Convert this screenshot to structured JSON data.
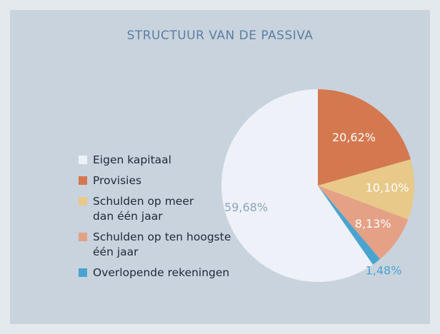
{
  "chart_data": {
    "type": "pie",
    "title": "STRUCTUUR VAN DE PASSIVA",
    "categories": [
      "Eigen kapitaal",
      "Provisies",
      "Schulden op meer\n dan één jaar",
      "Schulden op ten hoogste\néén jaar",
      "Overlopende rekeningen"
    ],
    "values": [
      59.68,
      20.62,
      10.1,
      8.13,
      1.48
    ],
    "value_labels": [
      "59,68%",
      "20,62%",
      "10,10%",
      "8,13%",
      "1,48%"
    ],
    "colors": [
      "#eef2f8",
      "#d4784f",
      "#e8c98a",
      "#e5a185",
      "#49a4d0"
    ],
    "legend": "left"
  }
}
